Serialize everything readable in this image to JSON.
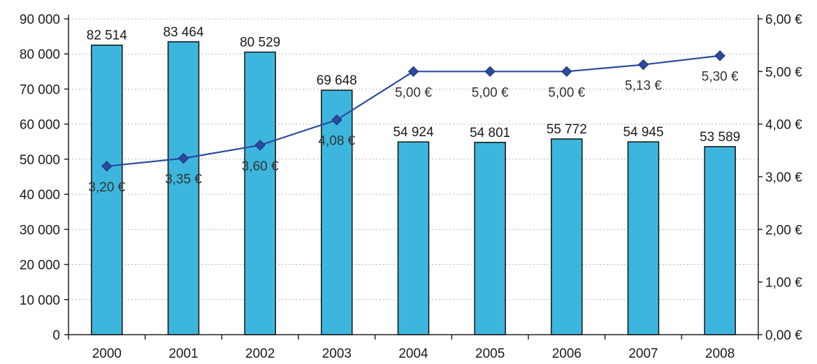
{
  "chart_data": {
    "type": "bar",
    "categories": [
      "2000",
      "2001",
      "2002",
      "2003",
      "2004",
      "2005",
      "2006",
      "2007",
      "2008"
    ],
    "series": [
      {
        "type": "bar",
        "axis": "left",
        "values": [
          82514,
          83464,
          80529,
          69648,
          54924,
          54801,
          55772,
          54945,
          53589
        ],
        "labels": [
          "82 514",
          "83 464",
          "80 529",
          "69 648",
          "54 924",
          "54 801",
          "55 772",
          "54 945",
          "53 589"
        ],
        "color": "#3db6de"
      },
      {
        "type": "line",
        "axis": "right",
        "values": [
          3.2,
          3.35,
          3.6,
          4.08,
          5.0,
          5.0,
          5.0,
          5.13,
          5.3
        ],
        "labels": [
          "3,20 €",
          "3,35 €",
          "3,60 €",
          "4,08 €",
          "5,00 €",
          "5,00 €",
          "5,00 €",
          "5,13 €",
          "5,30 €"
        ],
        "color": "#2b4aa0"
      }
    ],
    "left_axis": {
      "ylim": [
        0,
        90000
      ],
      "ticks": [
        0,
        10000,
        20000,
        30000,
        40000,
        50000,
        60000,
        70000,
        80000,
        90000
      ],
      "tick_labels": [
        "0",
        "10 000",
        "20 000",
        "30 000",
        "40 000",
        "50 000",
        "60 000",
        "70 000",
        "80 000",
        "90 000"
      ]
    },
    "right_axis": {
      "ylim": [
        0,
        6
      ],
      "ticks": [
        0,
        1,
        2,
        3,
        4,
        5,
        6
      ],
      "tick_labels": [
        "0,00 €",
        "1,00 €",
        "2,00 €",
        "3,00 €",
        "4,00 €",
        "5,00 €",
        "6,00 €"
      ]
    },
    "grid": true,
    "legend": "none",
    "title": "",
    "xlabel": "",
    "ylabel": ""
  }
}
